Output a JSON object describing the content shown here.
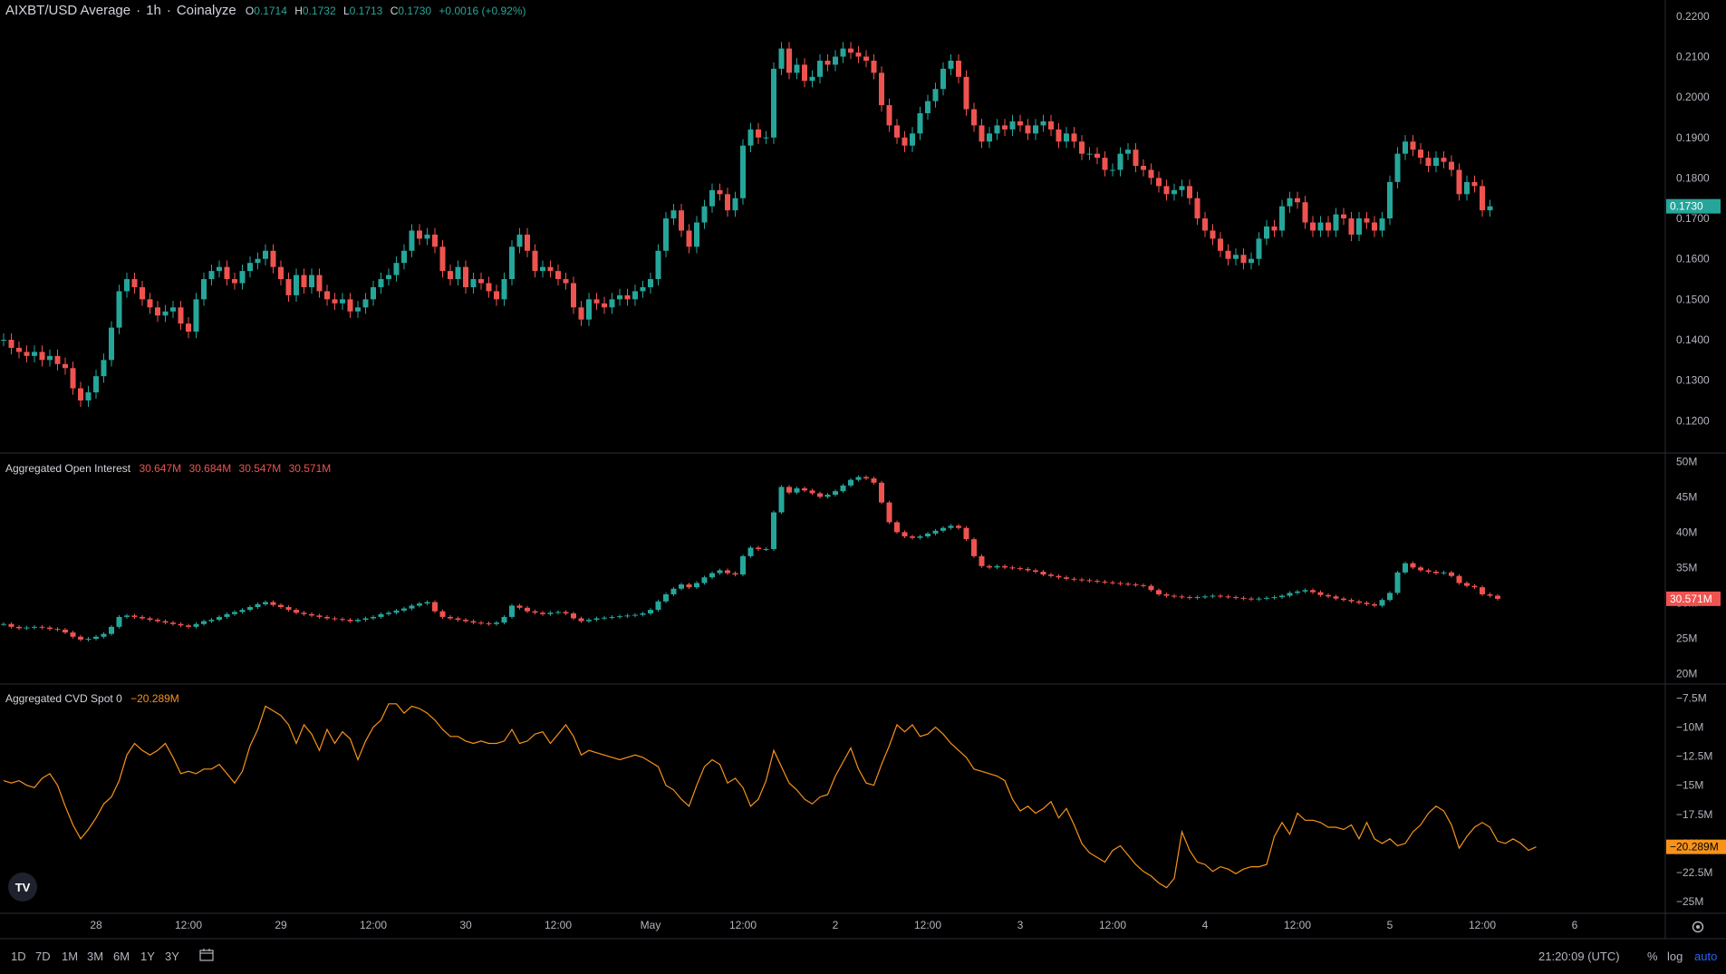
{
  "header": {
    "symbol": "AIXBT/USD Average",
    "interval": "1h",
    "source": "Coinalyze",
    "ohlc": {
      "o_label": "O",
      "o": "0.1714",
      "h_label": "H",
      "h": "0.1732",
      "l_label": "L",
      "l": "0.1713",
      "c_label": "C",
      "c": "0.1730",
      "change": "+0.0016 (+0.92%)"
    }
  },
  "oi_legend": {
    "title": "Aggregated Open Interest",
    "values": [
      "30.647M",
      "30.684M",
      "30.547M",
      "30.571M"
    ]
  },
  "cvd_legend": {
    "title": "Aggregated CVD Spot 0",
    "value": "−20.289M"
  },
  "colors": {
    "up": "#26a69a",
    "down": "#ef5350",
    "cvd": "#f7931a",
    "grid": "#2a2e39"
  },
  "time_axis": {
    "ticks": [
      {
        "label": "28",
        "bar": 12
      },
      {
        "label": "12:00",
        "bar": 24
      },
      {
        "label": "29",
        "bar": 36
      },
      {
        "label": "12:00",
        "bar": 48
      },
      {
        "label": "30",
        "bar": 60
      },
      {
        "label": "12:00",
        "bar": 72
      },
      {
        "label": "May",
        "bar": 84
      },
      {
        "label": "12:00",
        "bar": 96
      },
      {
        "label": "2",
        "bar": 108
      },
      {
        "label": "12:00",
        "bar": 120
      },
      {
        "label": "3",
        "bar": 132
      },
      {
        "label": "12:00",
        "bar": 144
      },
      {
        "label": "4",
        "bar": 156
      },
      {
        "label": "12:00",
        "bar": 168
      },
      {
        "label": "5",
        "bar": 180
      },
      {
        "label": "12:00",
        "bar": 192
      },
      {
        "label": "6",
        "bar": 204
      }
    ]
  },
  "bottom_bar": {
    "ranges": [
      "1D",
      "7D",
      "1M",
      "3M",
      "6M",
      "1Y",
      "3Y"
    ],
    "clock": "21:20:09 (UTC)",
    "percent": "%",
    "log": "log",
    "auto": "auto"
  },
  "chart_data": [
    {
      "type": "candlestick",
      "title": "AIXBT/USD Average · 1h · Coinalyze",
      "ylim": [
        0.112,
        0.224
      ],
      "y_ticks": [
        "0.2200",
        "0.2100",
        "0.2000",
        "0.1900",
        "0.1800",
        "0.1700",
        "0.1600",
        "0.1500",
        "0.1400",
        "0.1300",
        "0.1200"
      ],
      "y_tick_values": [
        0.22,
        0.21,
        0.2,
        0.19,
        0.18,
        0.17,
        0.16,
        0.15,
        0.14,
        0.13,
        0.12
      ],
      "last_price_label": "0.1730",
      "last_price": 0.173,
      "closes": [
        0.14,
        0.138,
        0.137,
        0.136,
        0.137,
        0.135,
        0.136,
        0.134,
        0.133,
        0.128,
        0.125,
        0.127,
        0.131,
        0.135,
        0.143,
        0.152,
        0.155,
        0.153,
        0.15,
        0.148,
        0.146,
        0.147,
        0.148,
        0.144,
        0.142,
        0.15,
        0.155,
        0.157,
        0.158,
        0.155,
        0.154,
        0.157,
        0.159,
        0.16,
        0.162,
        0.158,
        0.155,
        0.151,
        0.156,
        0.153,
        0.156,
        0.152,
        0.15,
        0.149,
        0.15,
        0.147,
        0.148,
        0.15,
        0.153,
        0.155,
        0.156,
        0.159,
        0.162,
        0.167,
        0.165,
        0.166,
        0.163,
        0.157,
        0.155,
        0.158,
        0.153,
        0.155,
        0.154,
        0.152,
        0.15,
        0.155,
        0.163,
        0.166,
        0.162,
        0.157,
        0.158,
        0.157,
        0.155,
        0.154,
        0.148,
        0.145,
        0.15,
        0.149,
        0.148,
        0.15,
        0.151,
        0.15,
        0.152,
        0.153,
        0.155,
        0.162,
        0.17,
        0.172,
        0.167,
        0.163,
        0.169,
        0.173,
        0.177,
        0.176,
        0.172,
        0.175,
        0.188,
        0.192,
        0.19,
        0.19,
        0.207,
        0.212,
        0.206,
        0.208,
        0.204,
        0.205,
        0.209,
        0.208,
        0.21,
        0.212,
        0.211,
        0.21,
        0.209,
        0.206,
        0.198,
        0.193,
        0.19,
        0.188,
        0.191,
        0.196,
        0.199,
        0.202,
        0.207,
        0.209,
        0.205,
        0.197,
        0.193,
        0.189,
        0.191,
        0.193,
        0.192,
        0.194,
        0.193,
        0.191,
        0.193,
        0.194,
        0.192,
        0.189,
        0.191,
        0.189,
        0.186,
        0.186,
        0.185,
        0.182,
        0.182,
        0.186,
        0.187,
        0.183,
        0.182,
        0.18,
        0.178,
        0.176,
        0.177,
        0.178,
        0.175,
        0.17,
        0.167,
        0.165,
        0.162,
        0.16,
        0.161,
        0.159,
        0.16,
        0.165,
        0.168,
        0.167,
        0.173,
        0.175,
        0.174,
        0.169,
        0.167,
        0.169,
        0.167,
        0.171,
        0.17,
        0.166,
        0.17,
        0.169,
        0.167,
        0.17,
        0.179,
        0.186,
        0.189,
        0.187,
        0.185,
        0.183,
        0.185,
        0.184,
        0.182,
        0.176,
        0.179,
        0.178,
        0.172,
        0.173
      ],
      "ohlc": "derived: open = previous close; high/low = max/min(open, close) ± small wick"
    },
    {
      "type": "candlestick",
      "title": "Aggregated Open Interest",
      "ylim": [
        18.5,
        51.2
      ],
      "y_ticks": [
        "50M",
        "45M",
        "40M",
        "35M",
        "30M",
        "25M",
        "20M"
      ],
      "y_tick_values": [
        50,
        45,
        40,
        35,
        30,
        25,
        20
      ],
      "last_value_label": "30.571M",
      "last_value": 30.571,
      "values": [
        27.0,
        26.6,
        26.4,
        26.5,
        26.6,
        26.5,
        26.3,
        26.2,
        25.8,
        25.2,
        24.8,
        24.9,
        25.2,
        25.6,
        26.6,
        28.0,
        28.2,
        28.0,
        27.8,
        27.6,
        27.4,
        27.2,
        27.0,
        26.8,
        26.6,
        27.0,
        27.4,
        27.6,
        28.0,
        28.4,
        28.7,
        29.0,
        29.4,
        29.8,
        30.1,
        29.7,
        29.4,
        29.0,
        28.6,
        28.4,
        28.2,
        28.0,
        27.8,
        27.7,
        27.6,
        27.4,
        27.6,
        27.8,
        28.0,
        28.4,
        28.6,
        28.9,
        29.2,
        29.6,
        29.9,
        30.1,
        28.8,
        28.0,
        27.8,
        27.6,
        27.4,
        27.2,
        27.1,
        27.0,
        27.2,
        28.0,
        29.6,
        29.3,
        28.8,
        28.6,
        28.4,
        28.6,
        28.7,
        28.5,
        27.8,
        27.4,
        27.6,
        27.8,
        27.9,
        28.0,
        28.1,
        28.2,
        28.3,
        28.5,
        29.0,
        30.2,
        31.2,
        32.0,
        32.6,
        32.2,
        32.8,
        33.6,
        34.2,
        34.6,
        34.2,
        34.0,
        36.6,
        37.8,
        37.6,
        37.6,
        42.8,
        46.4,
        45.6,
        46.2,
        45.9,
        45.5,
        45.0,
        45.3,
        45.8,
        46.6,
        47.4,
        47.8,
        47.6,
        47.0,
        44.2,
        41.4,
        40.0,
        39.4,
        39.2,
        39.4,
        39.8,
        40.2,
        40.6,
        40.9,
        40.6,
        39.0,
        36.6,
        35.2,
        35.0,
        35.2,
        35.0,
        34.9,
        34.8,
        34.6,
        34.4,
        34.0,
        33.8,
        33.6,
        33.4,
        33.3,
        33.2,
        33.1,
        33.0,
        32.9,
        32.8,
        32.7,
        32.6,
        32.5,
        32.4,
        31.8,
        31.2,
        31.0,
        30.9,
        30.8,
        30.7,
        30.8,
        30.9,
        31.0,
        30.9,
        30.8,
        30.7,
        30.6,
        30.5,
        30.6,
        30.7,
        30.8,
        31.0,
        31.4,
        31.6,
        31.8,
        31.5,
        31.1,
        30.9,
        30.6,
        30.4,
        30.2,
        30.0,
        29.8,
        29.6,
        30.4,
        31.4,
        34.3,
        35.6,
        35.0,
        34.6,
        34.4,
        34.2,
        34.3,
        33.8,
        32.8,
        32.4,
        32.2,
        31.2,
        31.0,
        30.571
      ]
    },
    {
      "type": "line",
      "title": "Aggregated CVD Spot 0",
      "ylim": [
        -26.0,
        -6.3
      ],
      "y_ticks": [
        "−7.5M",
        "−10M",
        "−12.5M",
        "−15M",
        "−17.5M",
        "−20M",
        "−22.5M",
        "−25M"
      ],
      "y_tick_values": [
        -7.5,
        -10,
        -12.5,
        -15,
        -17.5,
        -20,
        -22.5,
        -25
      ],
      "last_value_label": "−20.289M",
      "last_value": -20.289,
      "values": [
        -14.6,
        -14.8,
        -14.6,
        -15.0,
        -15.2,
        -14.4,
        -14.0,
        -15.0,
        -16.8,
        -18.4,
        -19.6,
        -18.8,
        -17.8,
        -16.6,
        -16.0,
        -14.6,
        -12.4,
        -11.4,
        -12.0,
        -12.4,
        -12.0,
        -11.4,
        -12.6,
        -14.0,
        -13.8,
        -14.0,
        -13.6,
        -13.6,
        -13.2,
        -14.0,
        -14.8,
        -13.8,
        -11.6,
        -10.2,
        -8.2,
        -8.6,
        -9.0,
        -9.8,
        -11.4,
        -9.8,
        -10.6,
        -12.0,
        -10.2,
        -11.4,
        -10.4,
        -11.0,
        -12.8,
        -11.2,
        -10.0,
        -9.4,
        -8.0,
        -8.0,
        -8.8,
        -8.2,
        -8.4,
        -8.8,
        -9.4,
        -10.2,
        -10.8,
        -10.8,
        -11.2,
        -11.4,
        -11.2,
        -11.4,
        -11.4,
        -11.2,
        -10.2,
        -11.4,
        -11.2,
        -10.6,
        -10.4,
        -11.4,
        -10.6,
        -9.8,
        -10.8,
        -12.4,
        -12.0,
        -12.2,
        -12.4,
        -12.6,
        -12.8,
        -12.6,
        -12.4,
        -12.6,
        -13.0,
        -13.4,
        -15.0,
        -15.4,
        -16.2,
        -16.8,
        -15.0,
        -13.4,
        -12.8,
        -13.2,
        -14.8,
        -14.4,
        -15.2,
        -16.8,
        -16.2,
        -14.6,
        -12.0,
        -13.4,
        -14.8,
        -15.4,
        -16.2,
        -16.6,
        -16.0,
        -15.8,
        -14.2,
        -13.0,
        -11.8,
        -13.6,
        -14.8,
        -15.0,
        -13.2,
        -11.6,
        -9.8,
        -10.4,
        -9.8,
        -10.8,
        -10.6,
        -10.0,
        -10.6,
        -11.4,
        -12.0,
        -12.6,
        -13.6,
        -13.8,
        -14.0,
        -14.2,
        -14.6,
        -16.2,
        -17.2,
        -16.8,
        -17.4,
        -17.0,
        -16.4,
        -17.8,
        -17.0,
        -18.4,
        -20.0,
        -20.8,
        -21.2,
        -21.6,
        -20.6,
        -20.2,
        -21.0,
        -21.8,
        -22.4,
        -22.8,
        -23.4,
        -23.8,
        -23.0,
        -19.0,
        -20.6,
        -21.6,
        -21.8,
        -22.4,
        -22.0,
        -22.2,
        -22.6,
        -22.2,
        -22.0,
        -22.0,
        -21.8,
        -19.4,
        -18.2,
        -19.2,
        -17.4,
        -18.0,
        -18.0,
        -18.2,
        -18.6,
        -18.6,
        -18.8,
        -18.4,
        -19.6,
        -18.2,
        -19.6,
        -20.0,
        -19.6,
        -20.2,
        -20.0,
        -19.0,
        -18.4,
        -17.4,
        -16.8,
        -17.2,
        -18.4,
        -20.4,
        -19.4,
        -18.6,
        -18.2,
        -18.6,
        -19.8,
        -20.0,
        -19.6,
        -20.0,
        -20.6,
        -20.289
      ]
    }
  ]
}
